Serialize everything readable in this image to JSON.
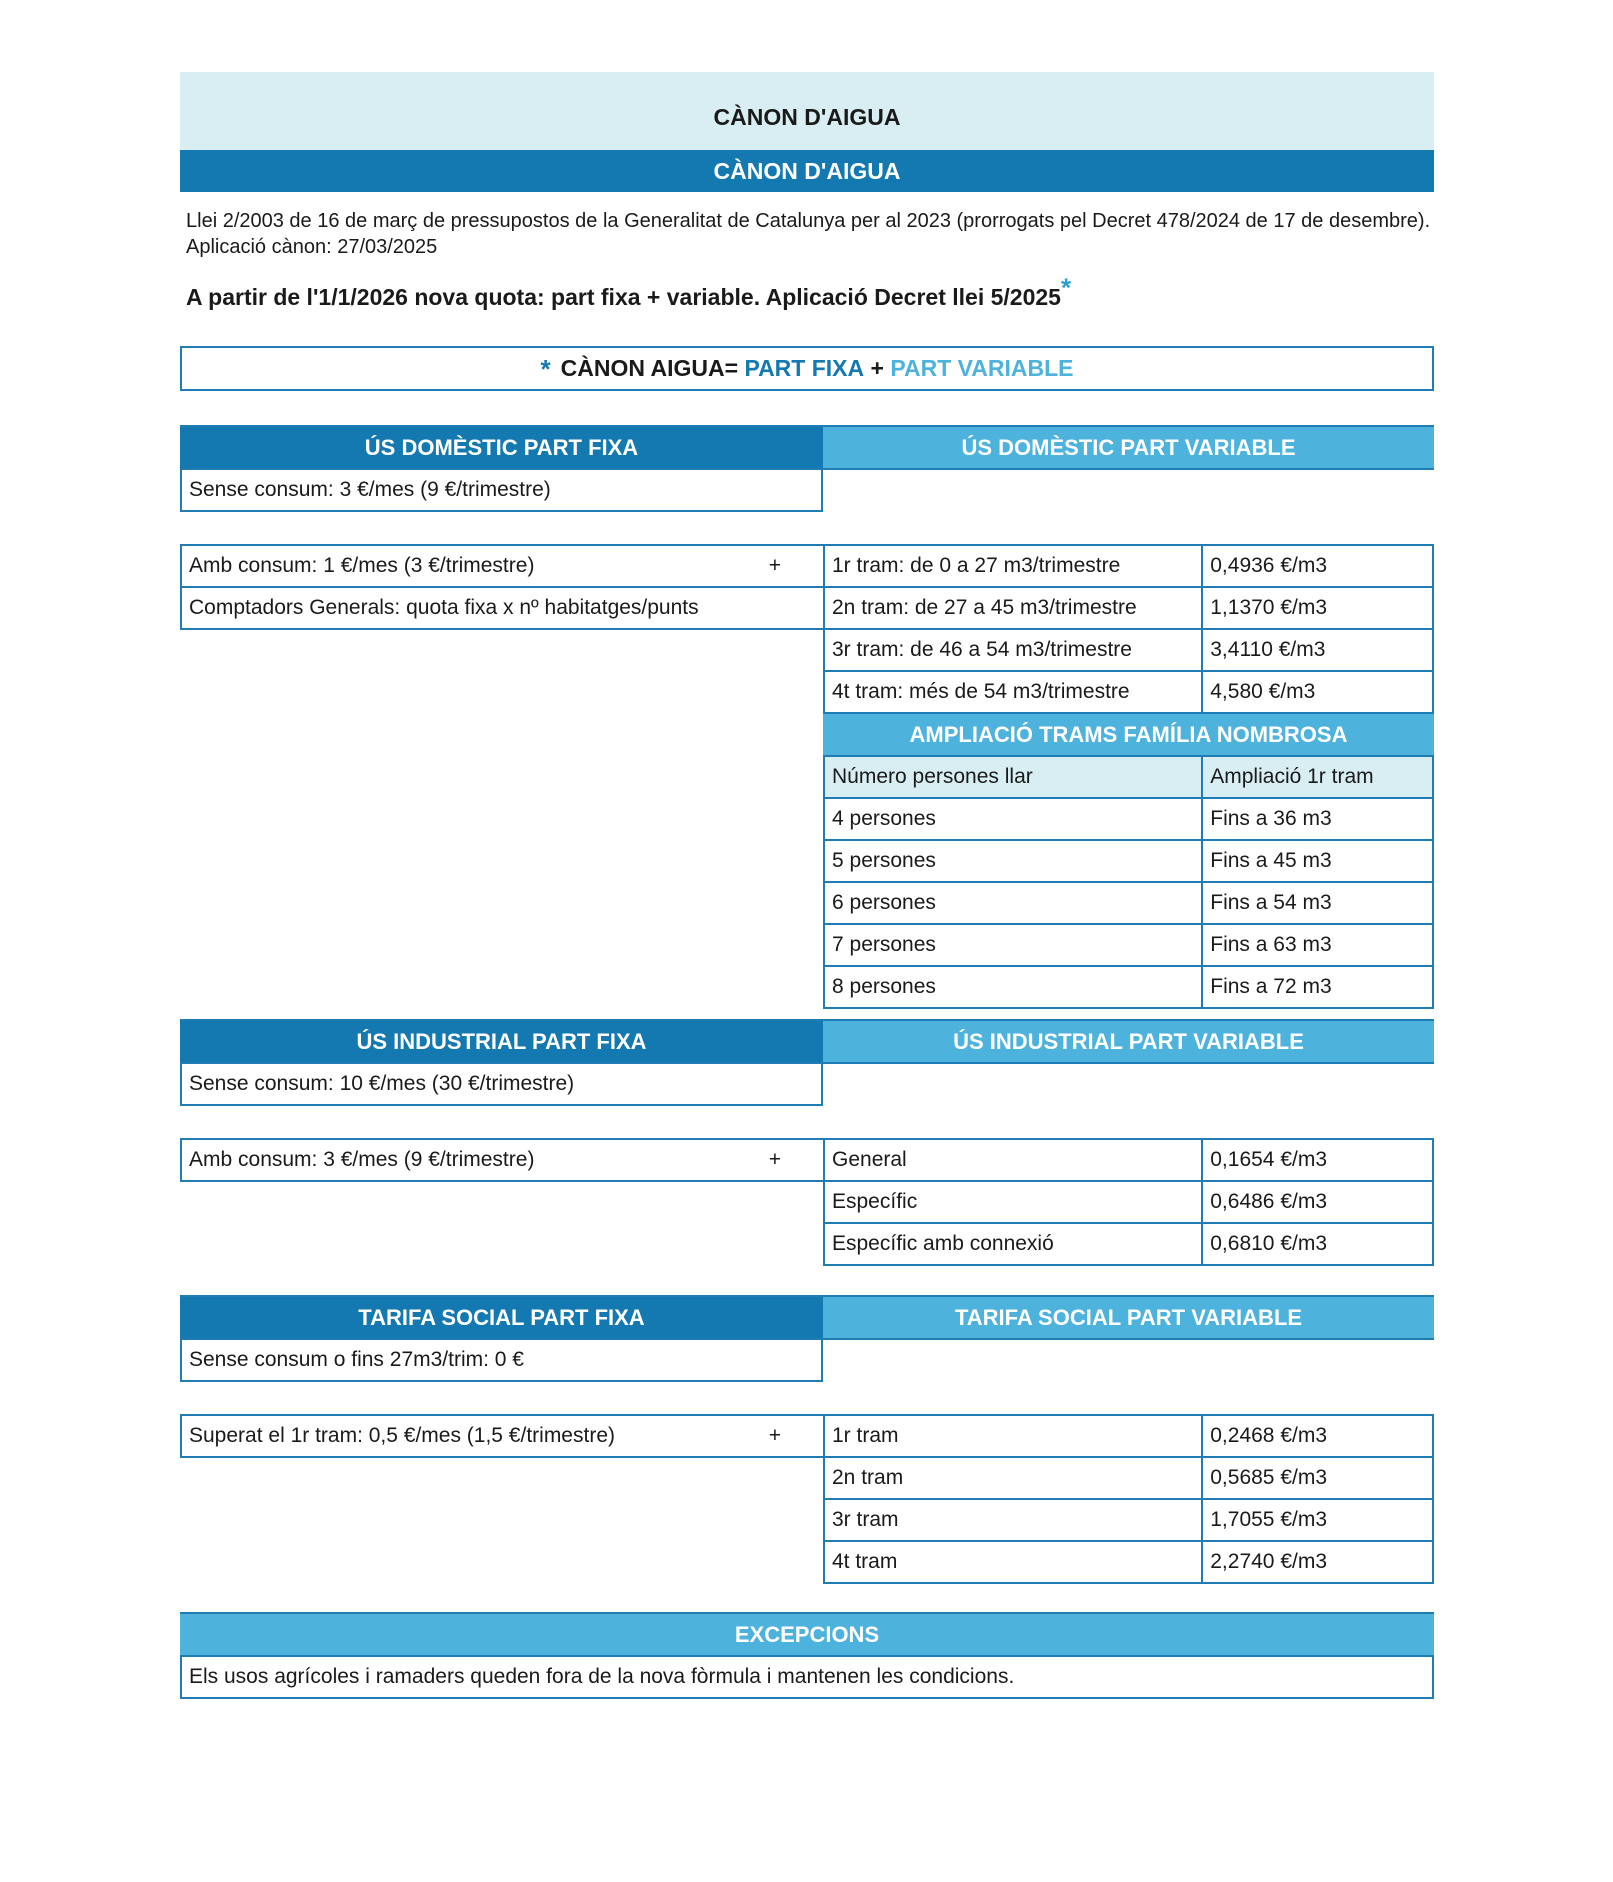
{
  "header": {
    "title_top": "CÀNON D'AIGUA",
    "title_bar": "CÀNON D'AIGUA"
  },
  "intro": {
    "law_text": "Llei 2/2003 de 16 de març de pressupostos de la Generalitat de Catalunya per al 2023 (prorrogats pel Decret 478/2024 de 17 de desembre). Aplicació cànon: 27/03/2025",
    "new_quota": "A partir de l'1/1/2026 nova quota: part fixa + variable. Aplicació Decret llei 5/2025",
    "star": "*"
  },
  "formula": {
    "star": "*",
    "label": "CÀNON AIGUA=",
    "fixa": "PART FIXA",
    "plus": "+",
    "variable": "PART VARIABLE"
  },
  "domestic": {
    "fixa_header": "ÚS DOMÈSTIC PART FIXA",
    "variable_header": "ÚS DOMÈSTIC PART VARIABLE",
    "sense_consum": "Sense consum: 3 €/mes (9 €/trimestre)",
    "amb_consum": "Amb consum: 1 €/mes (3 €/trimestre)",
    "plus": "+",
    "comptadors": "Comptadors Generals: quota fixa x nº habitatges/punts",
    "trams": [
      [
        "1r tram: de 0 a 27 m3/trimestre",
        "0,4936 €/m3"
      ],
      [
        "2n tram: de 27 a 45 m3/trimestre",
        "1,1370 €/m3"
      ],
      [
        "3r tram: de 46 a 54 m3/trimestre",
        "3,4110 €/m3"
      ],
      [
        "4t tram: més de 54 m3/trimestre",
        "4,580 €/m3"
      ]
    ],
    "ampliacio_header": "AMPLIACIÓ TRAMS FAMÍLIA NOMBROSA",
    "ampliacio_cols": [
      "Número persones llar",
      "Ampliació 1r tram"
    ],
    "ampliacio_rows": [
      [
        "4 persones",
        "Fins a 36 m3"
      ],
      [
        "5 persones",
        "Fins a 45 m3"
      ],
      [
        "6 persones",
        "Fins a 54 m3"
      ],
      [
        "7 persones",
        "Fins a 63 m3"
      ],
      [
        "8 persones",
        "Fins a 72 m3"
      ]
    ]
  },
  "industrial": {
    "fixa_header": "ÚS INDUSTRIAL PART FIXA",
    "variable_header": "ÚS INDUSTRIAL PART VARIABLE",
    "sense_consum": "Sense consum: 10 €/mes (30 €/trimestre)",
    "amb_consum": "Amb consum: 3 €/mes (9 €/trimestre)",
    "plus": "+",
    "rows": [
      [
        "General",
        "0,1654 €/m3"
      ],
      [
        "Específic",
        "0,6486 €/m3"
      ],
      [
        "Específic amb connexió",
        "0,6810 €/m3"
      ]
    ]
  },
  "social": {
    "fixa_header": "TARIFA SOCIAL PART FIXA",
    "variable_header": "TARIFA SOCIAL PART VARIABLE",
    "sense_consum": "Sense consum o fins 27m3/trim: 0 €",
    "amb_consum": "Superat el 1r tram: 0,5 €/mes (1,5 €/trimestre)",
    "plus": "+",
    "rows": [
      [
        "1r tram",
        "0,2468 €/m3"
      ],
      [
        "2n tram",
        "0,5685 €/m3"
      ],
      [
        "3r tram",
        "1,7055 €/m3"
      ],
      [
        "4t tram",
        "2,2740 €/m3"
      ]
    ]
  },
  "excepcions": {
    "header": "EXCEPCIONS",
    "text": "Els usos agrícoles i ramaders queden fora de la nova fòrmula i mantenen les condicions."
  },
  "colors": {
    "dark_blue": "#1479b0",
    "light_blue": "#4db2dc",
    "pale_blue": "#d8eef3"
  }
}
